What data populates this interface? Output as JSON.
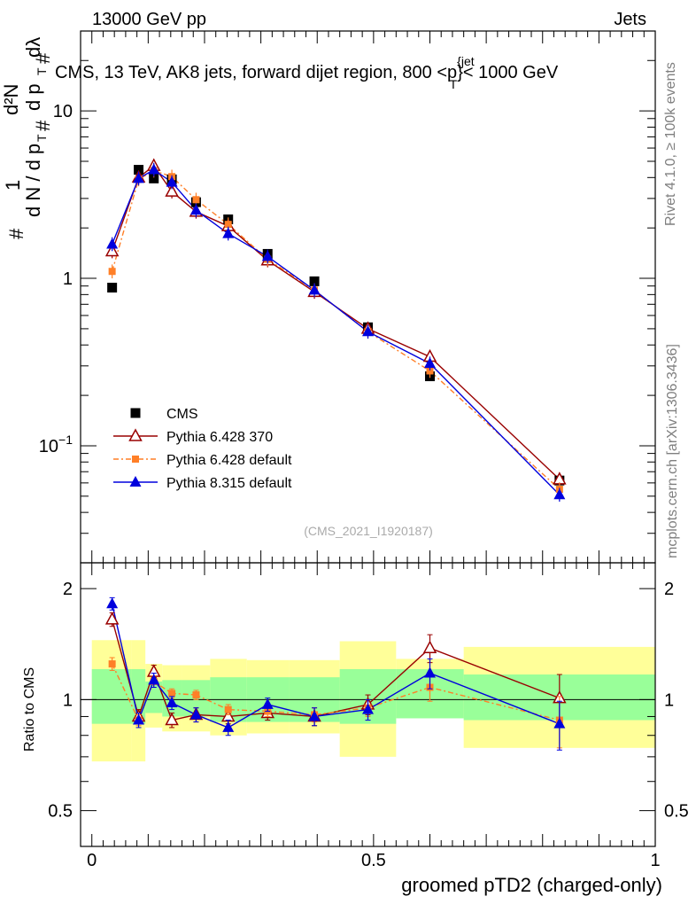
{
  "header": {
    "energy_label": "13000 GeV pp",
    "category_label": "Jets",
    "plot_title": "CMS, 13 TeV, AK8 jets, forward dijet region, 800 <p",
    "plot_title_sup": "{jet",
    "plot_title_sub": "T",
    "plot_title_end": "}< 1000 GeV",
    "rivet_label": "Rivet 4.1.0, ≥ 100k events",
    "mcplots_label": "mcplots.cern.ch [arXiv:1306.3436]",
    "analysis_id": "(CMS_2021_I1920187)"
  },
  "colors": {
    "cms": "#000000",
    "pythia6_370": "#990000",
    "pythia6_default": "#ff7f27",
    "pythia8": "#0000dd",
    "band_inner": "#99ff99",
    "band_outer": "#ffff99"
  },
  "chart_data": [
    {
      "type": "scatter",
      "panel": "main",
      "yscale": "log",
      "ylabel": "1/(dN/dp_T) d²N/(dp_T dλ)",
      "ylim": [
        0.02,
        30
      ],
      "xlim": [
        -0.02,
        1.0
      ],
      "yticks": [
        {
          "v": 0.1,
          "base": "10",
          "exp": "−1"
        },
        {
          "v": 1,
          "base": "1",
          "exp": ""
        },
        {
          "v": 10,
          "base": "10",
          "exp": ""
        }
      ],
      "legend": [
        {
          "key": "cms",
          "label": "CMS",
          "marker": "square-filled"
        },
        {
          "key": "pythia6_370",
          "label": "Pythia 6.428 370",
          "marker": "triangle-open"
        },
        {
          "key": "pythia6_default",
          "label": "Pythia 6.428 default",
          "marker": "square-small"
        },
        {
          "key": "pythia8",
          "label": "Pythia 8.315 default",
          "marker": "triangle-filled"
        }
      ],
      "bin_edges": [
        0.0,
        0.071,
        0.095,
        0.125,
        0.16,
        0.21,
        0.275,
        0.35,
        0.44,
        0.54,
        0.66,
        1.0
      ],
      "x": [
        0.036,
        0.083,
        0.11,
        0.142,
        0.185,
        0.242,
        0.312,
        0.395,
        0.49,
        0.6,
        0.83
      ],
      "series": [
        {
          "key": "cms",
          "name": "CMS",
          "values": [
            0.88,
            4.45,
            3.95,
            3.9,
            2.85,
            2.25,
            1.4,
            0.96,
            0.51,
            0.26,
            0.062
          ]
        },
        {
          "key": "pythia6_370",
          "name": "Pythia 6.428 370",
          "values": [
            1.45,
            4.0,
            4.7,
            3.3,
            2.5,
            2.05,
            1.28,
            0.83,
            0.5,
            0.34,
            0.063
          ]
        },
        {
          "key": "pythia6_default",
          "name": "Pythia 6.428 default",
          "values": [
            1.1,
            3.9,
            4.4,
            4.05,
            2.95,
            2.1,
            1.3,
            0.85,
            0.48,
            0.28,
            0.055
          ]
        },
        {
          "key": "pythia8",
          "name": "Pythia 8.315 default",
          "values": [
            1.6,
            3.95,
            4.45,
            3.75,
            2.55,
            1.85,
            1.35,
            0.85,
            0.48,
            0.31,
            0.051
          ]
        }
      ]
    },
    {
      "type": "scatter",
      "panel": "ratio",
      "yscale": "log",
      "ylabel": "Ratio to CMS",
      "xlabel": "groomed pTD2 (charged-only)",
      "ylim": [
        0.4,
        2.35
      ],
      "xlim": [
        -0.02,
        1.0
      ],
      "xticks": [
        0,
        0.5,
        1
      ],
      "xtick_labels": [
        "0",
        "0.5",
        "1"
      ],
      "yticks": [
        0.5,
        1,
        2
      ],
      "ytick_labels": [
        "0.5",
        "1",
        "2"
      ],
      "x": [
        0.036,
        0.083,
        0.11,
        0.142,
        0.185,
        0.242,
        0.312,
        0.395,
        0.49,
        0.6,
        0.83
      ],
      "bin_edges": [
        0.0,
        0.071,
        0.095,
        0.125,
        0.16,
        0.21,
        0.275,
        0.35,
        0.44,
        0.54,
        0.66,
        1.0
      ],
      "bands": {
        "inner_low": [
          0.86,
          0.86,
          0.92,
          0.9,
          0.9,
          0.87,
          0.87,
          0.87,
          0.86,
          0.89,
          0.88
        ],
        "inner_high": [
          1.21,
          1.21,
          1.12,
          1.13,
          1.13,
          1.15,
          1.15,
          1.15,
          1.21,
          1.21,
          1.17
        ],
        "outer_low": [
          0.68,
          0.68,
          0.84,
          0.82,
          0.82,
          0.8,
          0.81,
          0.81,
          0.7,
          0.93,
          0.74
        ],
        "outer_high": [
          1.45,
          1.45,
          1.25,
          1.24,
          1.24,
          1.29,
          1.28,
          1.28,
          1.44,
          1.29,
          1.39
        ]
      },
      "series": [
        {
          "key": "pythia6_370",
          "name": "Pythia 6.428 370",
          "values": [
            1.65,
            0.9,
            1.19,
            0.88,
            0.91,
            0.9,
            0.92,
            0.9,
            0.97,
            1.38,
            1.01
          ],
          "err": [
            0.07,
            0.04,
            0.05,
            0.04,
            0.04,
            0.04,
            0.04,
            0.05,
            0.06,
            0.12,
            0.16
          ]
        },
        {
          "key": "pythia6_default",
          "name": "Pythia 6.428 default",
          "values": [
            1.25,
            0.88,
            1.12,
            1.04,
            1.03,
            0.94,
            0.93,
            0.91,
            0.95,
            1.08,
            0.88
          ],
          "err": [
            0.05,
            0.03,
            0.04,
            0.03,
            0.03,
            0.03,
            0.03,
            0.04,
            0.05,
            0.09,
            0.14
          ]
        },
        {
          "key": "pythia8",
          "name": "Pythia 8.315 default",
          "values": [
            1.82,
            0.88,
            1.13,
            0.98,
            0.91,
            0.84,
            0.97,
            0.9,
            0.94,
            1.18,
            0.86
          ],
          "err": [
            0.07,
            0.04,
            0.05,
            0.04,
            0.04,
            0.04,
            0.04,
            0.05,
            0.06,
            0.11,
            0.13
          ]
        }
      ]
    }
  ]
}
